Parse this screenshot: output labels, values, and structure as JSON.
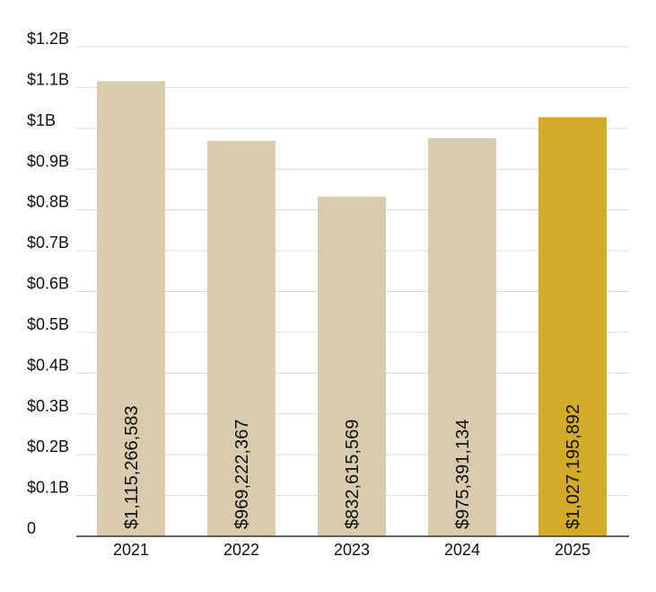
{
  "chart_data": {
    "type": "bar",
    "title": "",
    "xlabel": "",
    "ylabel": "",
    "categories": [
      "2021",
      "2022",
      "2023",
      "2024",
      "2025"
    ],
    "values": [
      1115266583,
      969222367,
      832615569,
      975391134,
      1027195892
    ],
    "value_labels": [
      "$1,115,266,583",
      "$969,222,367",
      "$832,615,569",
      "$975,391,134",
      "$1,027,195,892"
    ],
    "ylim": [
      0,
      1200000000
    ],
    "yticks": [
      {
        "value": 0,
        "label": "0"
      },
      {
        "value": 100000000,
        "label": "$0.1B"
      },
      {
        "value": 200000000,
        "label": "$0.2B"
      },
      {
        "value": 300000000,
        "label": "$0.3B"
      },
      {
        "value": 400000000,
        "label": "$0.4B"
      },
      {
        "value": 500000000,
        "label": "$0.5B"
      },
      {
        "value": 600000000,
        "label": "$0.6B"
      },
      {
        "value": 700000000,
        "label": "$0.7B"
      },
      {
        "value": 800000000,
        "label": "$0.8B"
      },
      {
        "value": 900000000,
        "label": "$0.9B"
      },
      {
        "value": 1000000000,
        "label": "$1B"
      },
      {
        "value": 1100000000,
        "label": "$1.1B"
      },
      {
        "value": 1200000000,
        "label": "$1.2B"
      }
    ],
    "grid": true,
    "colors": {
      "bar": "#d9cbae",
      "highlight_bar": "#d4aa29",
      "grid": "#dcdcdc",
      "axis": "#333333",
      "text": "#111111"
    },
    "highlight_index": 4
  }
}
